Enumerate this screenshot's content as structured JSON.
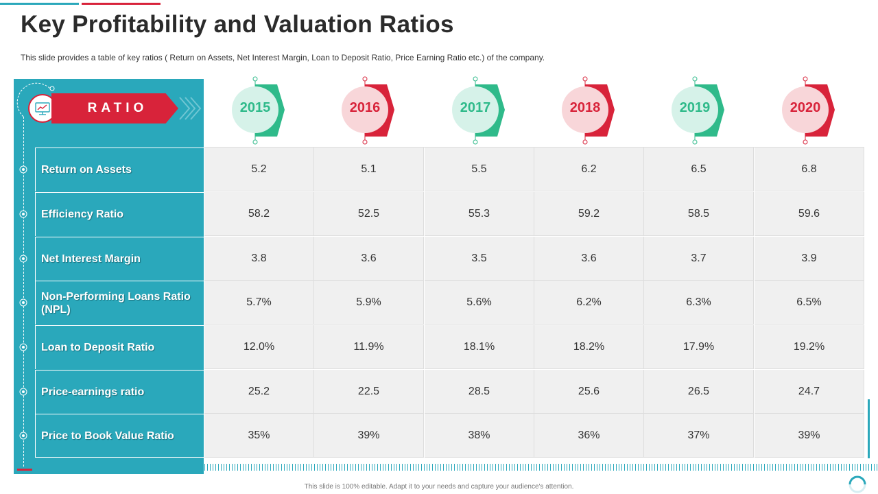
{
  "title": "Key Profitability and Valuation Ratios",
  "subtitle": "This slide provides  a table of key ratios ( Return  on Assets, Net Interest Margin, Loan to Deposit Ratio, Price Earning Ratio etc.) of the company.",
  "header_label": "RATIO",
  "header_icon": "monitor-chart-icon",
  "colors": {
    "teal": "#2aa8bb",
    "red": "#d8233a",
    "green": "#2fba8a",
    "green_light": "#d6f2e9",
    "red_light": "#f8d6d9",
    "cell_bg": "#f0f0f0"
  },
  "years": [
    {
      "label": "2015",
      "theme": "green"
    },
    {
      "label": "2016",
      "theme": "red"
    },
    {
      "label": "2017",
      "theme": "green"
    },
    {
      "label": "2018",
      "theme": "red"
    },
    {
      "label": "2019",
      "theme": "green"
    },
    {
      "label": "2020",
      "theme": "red"
    }
  ],
  "rows": [
    {
      "label": "Return on Assets",
      "values": [
        "5.2",
        "5.1",
        "5.5",
        "6.2",
        "6.5",
        "6.8"
      ]
    },
    {
      "label": "Efficiency Ratio",
      "values": [
        "58.2",
        "52.5",
        "55.3",
        "59.2",
        "58.5",
        "59.6"
      ]
    },
    {
      "label": "Net Interest  Margin",
      "values": [
        "3.8",
        "3.6",
        "3.5",
        "3.6",
        "3.7",
        "3.9"
      ]
    },
    {
      "label": "Non-Performing Loans Ratio (NPL)",
      "values": [
        "5.7%",
        "5.9%",
        "5.6%",
        "6.2%",
        "6.3%",
        "6.5%"
      ]
    },
    {
      "label": "Loan to Deposit Ratio",
      "values": [
        "12.0%",
        "11.9%",
        "18.1%",
        "18.2%",
        "17.9%",
        "19.2%"
      ]
    },
    {
      "label": "Price-earnings ratio",
      "values": [
        "25.2",
        "22.5",
        "28.5",
        "25.6",
        "26.5",
        "24.7"
      ]
    },
    {
      "label": "Price to Book Value Ratio",
      "values": [
        "35%",
        "39%",
        "38%",
        "36%",
        "37%",
        "39%"
      ]
    }
  ],
  "footer": "This slide is 100% editable. Adapt it to your needs and capture your audience's attention."
}
